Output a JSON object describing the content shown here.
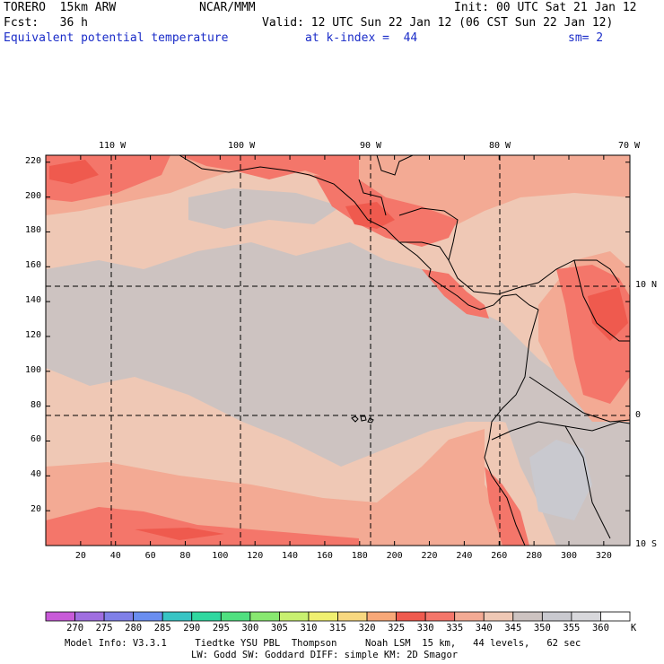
{
  "header": {
    "model": "TORERO  15km ARW",
    "org": "NCAR/MMM",
    "init": "Init: 00 UTC Sat 21 Jan 12",
    "fcst": "Fcst:   36 h",
    "valid": "Valid: 12 UTC Sun 22 Jan 12 (06 CST Sun 22 Jan 12)",
    "field": "Equivalent potential temperature",
    "level": "at k-index =  44",
    "smooth": "sm= 2"
  },
  "map": {
    "lon_labels": [
      "110 W",
      "100 W",
      "90 W",
      "80 W",
      "70 W"
    ],
    "lat_labels": [
      "10 N",
      "0",
      "10 S"
    ],
    "y_ticks": [
      "20",
      "40",
      "60",
      "80",
      "100",
      "120",
      "140",
      "160",
      "180",
      "200",
      "220"
    ],
    "x_ticks": [
      "20",
      "40",
      "60",
      "80",
      "100",
      "120",
      "140",
      "160",
      "180",
      "200",
      "220",
      "240",
      "260",
      "280",
      "300",
      "320"
    ],
    "colors": {
      "c335": "#f4766a",
      "c330": "#ef5a4e",
      "c340": "#f3aa94",
      "c345": "#efc8b5",
      "c350": "#cdc3c1",
      "c355": "#c9c9cf",
      "land": "#000000",
      "grid": "#000000"
    }
  },
  "colorbar": {
    "unit": "K",
    "labels": [
      "270",
      "275",
      "280",
      "285",
      "290",
      "295",
      "300",
      "305",
      "310",
      "315",
      "320",
      "325",
      "330",
      "335",
      "340",
      "345",
      "350",
      "355",
      "360"
    ],
    "colors": [
      "#c85ad8",
      "#a06ee0",
      "#8080e8",
      "#6a8ef0",
      "#38c4c4",
      "#30d8a0",
      "#50e080",
      "#88e870",
      "#c8f070",
      "#f0f070",
      "#f8d880",
      "#f8a878",
      "#ef5a4e",
      "#f4766a",
      "#f3aa94",
      "#efc8b5",
      "#cdc3c1",
      "#c9c9cf",
      "#d8d8dc",
      "#ffffff"
    ]
  },
  "footer": {
    "line1": "Model Info: V3.3.1     Tiedtke YSU PBL  Thompson     Noah LSM  15 km,   44 levels,   62 sec",
    "line2": "LW: Godd SW: Goddard DIFF: simple KM: 2D Smagor"
  }
}
